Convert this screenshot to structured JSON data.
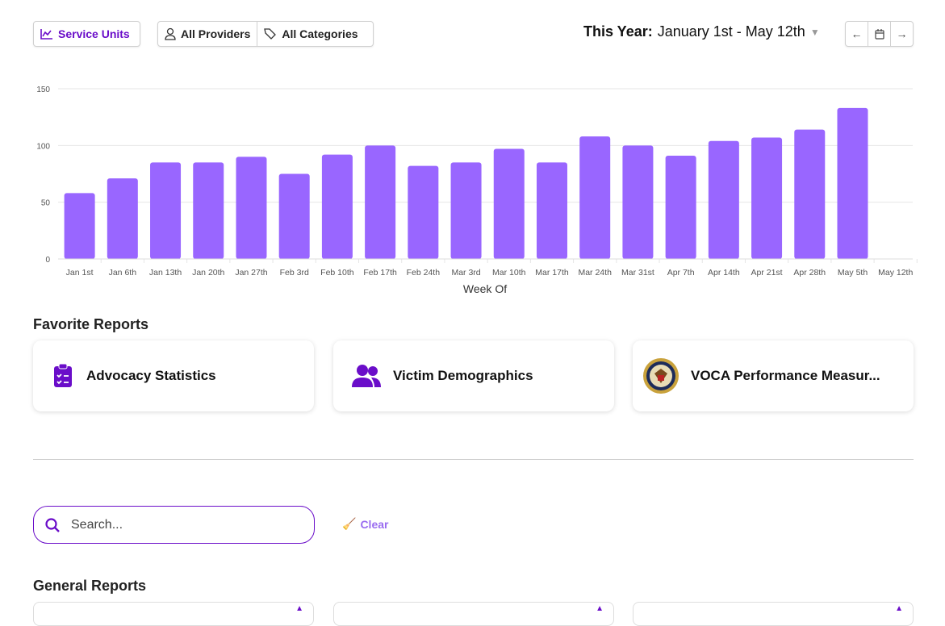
{
  "toolbar": {
    "service_units": "Service Units",
    "providers": "All Providers",
    "categories": "All Categories",
    "range_label": "This Year:",
    "range_value": "January 1st - May 12th"
  },
  "colors": {
    "accent": "#6a0dc9",
    "bar": "#9966ff"
  },
  "chart_data": {
    "type": "bar",
    "xlabel": "Week Of",
    "ylabel": "",
    "ylim": [
      0,
      150
    ],
    "yticks": [
      0,
      50,
      100,
      150
    ],
    "grid": true,
    "categories": [
      "Jan 1st",
      "Jan 6th",
      "Jan 13th",
      "Jan 20th",
      "Jan 27th",
      "Feb 3rd",
      "Feb 10th",
      "Feb 17th",
      "Feb 24th",
      "Mar 3rd",
      "Mar 10th",
      "Mar 17th",
      "Mar 24th",
      "Mar 31st",
      "Apr 7th",
      "Apr 14th",
      "Apr 21st",
      "Apr 28th",
      "May 5th",
      "May 12th"
    ],
    "values": [
      58,
      71,
      85,
      85,
      90,
      75,
      92,
      100,
      82,
      85,
      97,
      85,
      108,
      100,
      91,
      104,
      107,
      114,
      133,
      0
    ]
  },
  "favorites": {
    "title": "Favorite Reports",
    "items": [
      {
        "label": "Advocacy Statistics",
        "icon": "clipboard-check-icon"
      },
      {
        "label": "Victim Demographics",
        "icon": "users-icon"
      },
      {
        "label": "VOCA Performance Measur...",
        "icon": "doj-seal-icon"
      }
    ]
  },
  "search": {
    "placeholder": "Search...",
    "clear": "Clear"
  },
  "general": {
    "title": "General Reports"
  }
}
